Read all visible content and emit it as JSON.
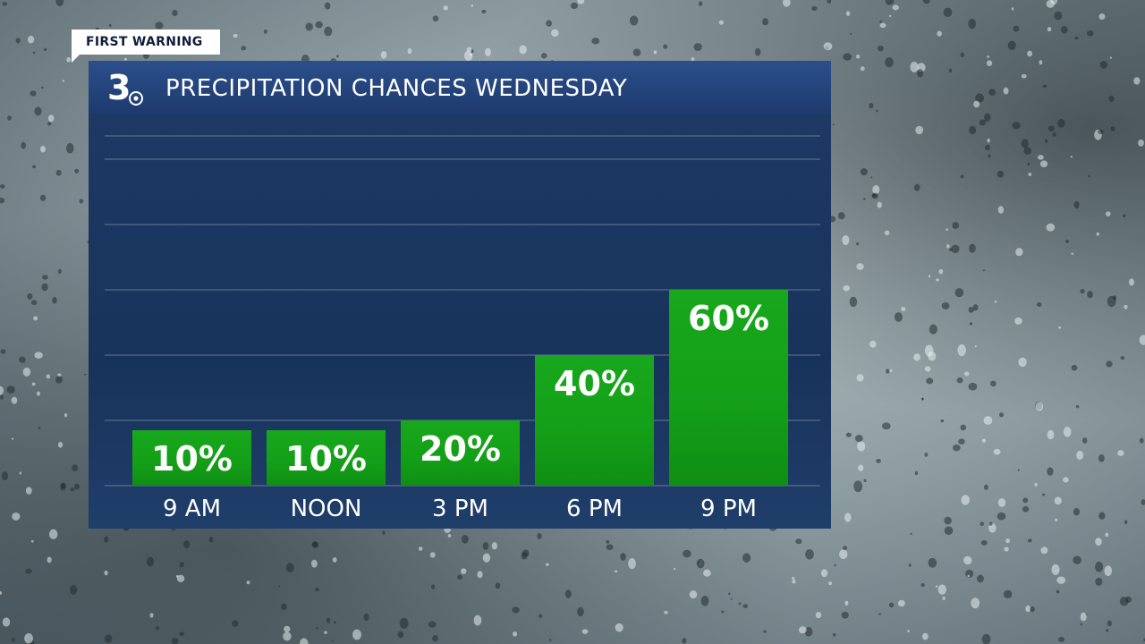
{
  "badge": "FIRST WARNING",
  "station_logo": "3",
  "colors": {
    "bar": "#15a41a",
    "header": "#234a86",
    "panel": "#1b365f",
    "text": "#ffffff"
  },
  "chart_data": {
    "type": "bar",
    "title": "PRECIPITATION CHANCES WEDNESDAY",
    "categories": [
      "9 AM",
      "NOON",
      "3 PM",
      "6 PM",
      "9 PM"
    ],
    "values": [
      10,
      10,
      20,
      40,
      60
    ],
    "value_labels": [
      "10%",
      "10%",
      "20%",
      "40%",
      "60%"
    ],
    "ylim": [
      0,
      100
    ],
    "grid": true,
    "legend": "none"
  }
}
